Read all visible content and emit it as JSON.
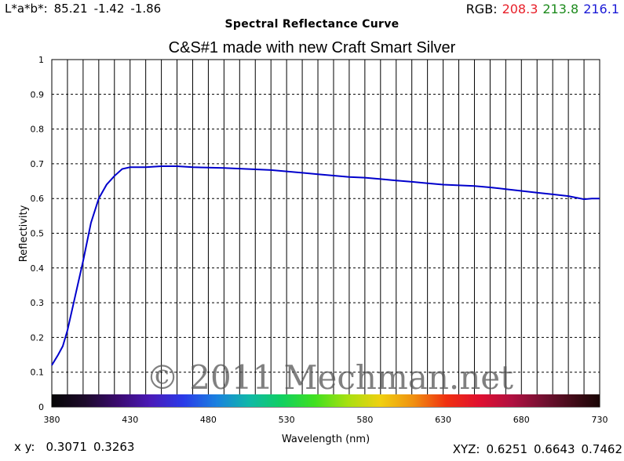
{
  "header": {
    "lab_label": "L*a*b*:",
    "lab_values": [
      "85.21",
      "-1.42",
      "-1.86"
    ],
    "title": "Spectral Reflectance Curve",
    "rgb_label": "RGB:",
    "rgb_values": [
      {
        "value": "208.3",
        "color": "#e8202a"
      },
      {
        "value": "213.8",
        "color": "#1c8a1c"
      },
      {
        "value": "216.1",
        "color": "#1a1ad6"
      }
    ]
  },
  "footer": {
    "xy_label": "x y:",
    "xy_values": [
      "0.3071",
      "0.3263"
    ],
    "xyz_label": "XYZ:",
    "xyz_values": [
      "0.6251",
      "0.6643",
      "0.7462"
    ]
  },
  "watermark": "© 2011 Mechman.net",
  "chart_data": {
    "type": "line",
    "title": "C&S#1 made with new Craft Smart Silver",
    "xlabel": "Wavelength (nm)",
    "ylabel": "Reflectivity",
    "xlim": [
      380,
      730
    ],
    "ylim": [
      0,
      1
    ],
    "x_ticks": [
      "380",
      "430",
      "480",
      "530",
      "580",
      "630",
      "680",
      "730"
    ],
    "y_ticks": [
      "0",
      "0.1",
      "0.2",
      "0.3",
      "0.4",
      "0.5",
      "0.6",
      "0.7",
      "0.8",
      "0.9",
      "1"
    ],
    "grid": true,
    "line_color": "#0000cc",
    "series": [
      {
        "x": [
          380,
          384,
          387,
          390,
          395,
          400,
          405,
          410,
          415,
          420,
          425,
          430,
          440,
          450,
          460,
          470,
          480,
          490,
          500,
          510,
          520,
          530,
          540,
          550,
          560,
          570,
          580,
          590,
          600,
          610,
          620,
          630,
          640,
          650,
          660,
          670,
          680,
          690,
          700,
          710,
          720,
          725,
          730
        ],
        "y": [
          0.12,
          0.15,
          0.175,
          0.22,
          0.32,
          0.42,
          0.53,
          0.6,
          0.64,
          0.665,
          0.685,
          0.69,
          0.69,
          0.693,
          0.693,
          0.69,
          0.689,
          0.688,
          0.686,
          0.684,
          0.682,
          0.678,
          0.674,
          0.67,
          0.666,
          0.662,
          0.66,
          0.656,
          0.652,
          0.648,
          0.644,
          0.64,
          0.638,
          0.636,
          0.632,
          0.627,
          0.622,
          0.617,
          0.612,
          0.607,
          0.598,
          0.6,
          0.6
        ]
      }
    ]
  }
}
